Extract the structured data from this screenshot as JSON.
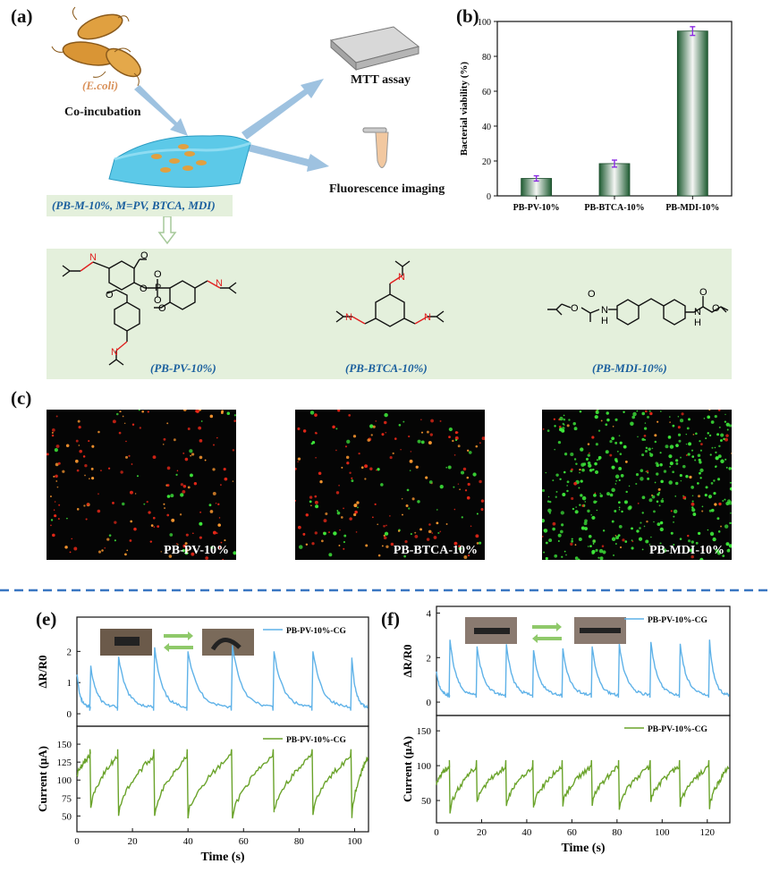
{
  "panels": {
    "a": {
      "label": "(a)",
      "ecoli": "(E.coli)",
      "coincubation": "Co-incubation",
      "mtt": "MTT assay",
      "fluorescence": "Fluorescence imaging",
      "film_caption": "(PB-M-10%, M=PV, BTCA, MDI)",
      "structures": {
        "pv": "(PB-PV-10%)",
        "btca": "(PB-BTCA-10%)",
        "mdi": "(PB-MDI-10%)"
      }
    },
    "b": {
      "label": "(b)"
    },
    "c": {
      "label": "(c)",
      "images": [
        {
          "caption": "PB-PV-10%"
        },
        {
          "caption": "PB-BTCA-10%"
        },
        {
          "caption": "PB-MDI-10%"
        }
      ]
    },
    "e": {
      "label": "(e)",
      "legend_top": "PB-PV-10%-CG",
      "legend_bottom": "PB-PV-10%-CG",
      "ylabel_top": "ΔR/R",
      "ylabel_top_sub": "0",
      "ylabel_bottom": "Current (μA)",
      "xlabel": "Time (s)"
    },
    "f": {
      "label": "(f)",
      "legend_top": "PB-PV-10%-CG",
      "legend_bottom": "PB-PV-10%-CG",
      "ylabel_top": "ΔR/R",
      "ylabel_top_sub": "0",
      "ylabel_bottom": "Current (μA)",
      "xlabel": "Time (s)"
    }
  },
  "colors": {
    "blue_curve": "#5fb2e8",
    "green_curve": "#6aa32a",
    "dashed_divider": "#3a77c2",
    "bar_dark": "#1f5c32",
    "error_bar": "#8a2be2",
    "structure_bg": "#e4f0dc"
  },
  "chart_data": [
    {
      "type": "bar",
      "categories": [
        "PB-PV-10%",
        "PB-BTCA-10%",
        "PB-MDI-10%"
      ],
      "values": [
        10,
        18.5,
        94.5
      ],
      "errors": [
        1.5,
        2,
        2.5
      ],
      "title": "",
      "xlabel": "",
      "ylabel": "Bacterial viability (%)",
      "ylim": [
        0,
        100
      ],
      "yticks": [
        0,
        20,
        40,
        60,
        80,
        100
      ]
    },
    {
      "type": "line",
      "name": "e-top",
      "series": [
        {
          "name": "PB-PV-10%-CG",
          "peaks_x": [
            5,
            15,
            28,
            40,
            56,
            71,
            85,
            99
          ],
          "peaks_y": [
            1.5,
            1.8,
            2.1,
            2.0,
            2.2,
            2.0,
            2.0,
            1.8
          ]
        }
      ],
      "baseline": 0.2,
      "xlim": [
        0,
        105
      ],
      "ylim": [
        -0.4,
        3.1
      ],
      "yticks": [
        0,
        1,
        2
      ],
      "xlabel": "",
      "ylabel": "ΔR/R0"
    },
    {
      "type": "line",
      "name": "e-bottom",
      "series": [
        {
          "name": "PB-PV-10%-CG",
          "drops_x": [
            5,
            15,
            28,
            40,
            56,
            71,
            85,
            99
          ],
          "drops_y": [
            62,
            52,
            50,
            50,
            47,
            55,
            55,
            50
          ]
        }
      ],
      "baseline": 135,
      "xlim": [
        0,
        105
      ],
      "ylim": [
        28,
        175
      ],
      "yticks": [
        50,
        75,
        100,
        125,
        150
      ],
      "xticks": [
        0,
        20,
        40,
        60,
        80,
        100
      ],
      "xlabel": "Time (s)",
      "ylabel": "Current (μA)"
    },
    {
      "type": "line",
      "name": "f-top",
      "series": [
        {
          "name": "PB-PV-10%-CG",
          "peaks_x": [
            6,
            18,
            31,
            43,
            56,
            69,
            81,
            95,
            108,
            121
          ],
          "peaks_y": [
            2.8,
            2.5,
            2.6,
            2.3,
            2.4,
            2.5,
            2.6,
            2.7,
            2.6,
            2.8
          ]
        }
      ],
      "baseline": 0.3,
      "xlim": [
        0,
        130
      ],
      "ylim": [
        -0.6,
        4.3
      ],
      "yticks": [
        0,
        2,
        4
      ],
      "xlabel": "",
      "ylabel": "ΔR/R0"
    },
    {
      "type": "line",
      "name": "f-bottom",
      "series": [
        {
          "name": "PB-PV-10%-CG",
          "drops_x": [
            6,
            18,
            31,
            43,
            56,
            69,
            81,
            95,
            108,
            121
          ],
          "drops_y": [
            35,
            48,
            42,
            40,
            45,
            45,
            40,
            50,
            42,
            38
          ]
        }
      ],
      "baseline": 100,
      "xlim": [
        0,
        130
      ],
      "ylim": [
        18,
        172
      ],
      "yticks": [
        50,
        100,
        150
      ],
      "xticks": [
        0,
        20,
        40,
        60,
        80,
        100,
        120
      ],
      "xlabel": "Time (s)",
      "ylabel": "Current (μA)"
    }
  ]
}
